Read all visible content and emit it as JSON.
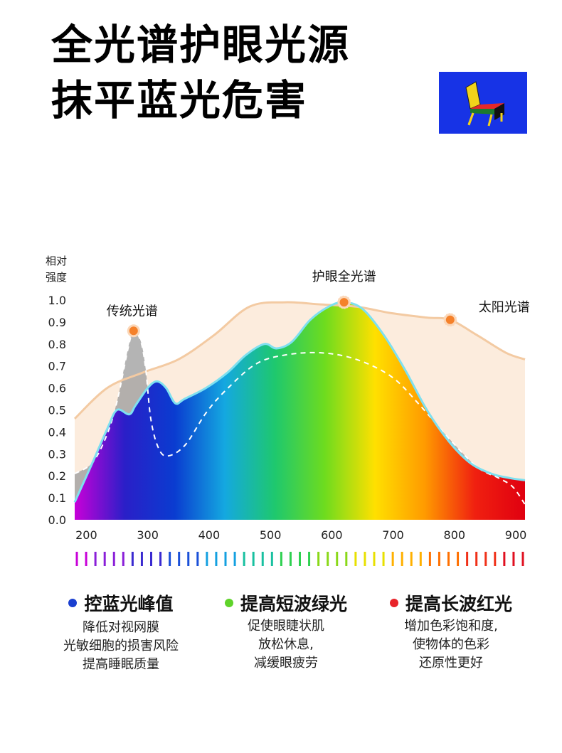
{
  "header": {
    "title": [
      "全光谱护眼光源",
      "抹平蓝光危害"
    ]
  },
  "chart_data": {
    "type": "area",
    "ylabel": "相对强度",
    "xlim": [
      181,
      915
    ],
    "ylim": [
      0,
      1
    ],
    "xticks": [
      200,
      300,
      400,
      500,
      600,
      700,
      800,
      900
    ],
    "yticks": [
      {
        "value": 0,
        "label": "0.0"
      },
      0.1,
      0.2,
      0.3,
      0.4,
      0.5,
      0.6,
      0.7,
      0.8,
      0.9,
      {
        "value": 1,
        "label": "1.0"
      }
    ],
    "series": [
      {
        "name": "太阳光谱",
        "color": "#fbe6d2",
        "line_color": "#f3caa2",
        "x": [
          181,
          234,
          292,
          350,
          408,
          466,
          524,
          582,
          640,
          698,
          756,
          793,
          837,
          884,
          915
        ],
        "values": [
          0.46,
          0.6,
          0.67,
          0.73,
          0.84,
          0.97,
          0.99,
          0.98,
          0.97,
          0.94,
          0.92,
          0.91,
          0.84,
          0.76,
          0.73
        ],
        "marker": {
          "x": 793,
          "y": 0.91
        }
      },
      {
        "name": "传统光谱",
        "color": "#9b9b9b",
        "line_color": "#ffffff",
        "dashed": true,
        "x": [
          181,
          210,
          234,
          251,
          268,
          277,
          289,
          297,
          305,
          317,
          332,
          361,
          396,
          431,
          477,
          524,
          582,
          640,
          698,
          744,
          791,
          837,
          872,
          895,
          915
        ],
        "values": [
          0.21,
          0.26,
          0.39,
          0.55,
          0.78,
          0.86,
          0.81,
          0.68,
          0.46,
          0.33,
          0.29,
          0.34,
          0.49,
          0.6,
          0.71,
          0.75,
          0.76,
          0.73,
          0.65,
          0.52,
          0.37,
          0.24,
          0.19,
          0.15,
          0.07
        ],
        "marker": {
          "x": 277,
          "y": 0.86
        }
      },
      {
        "name": "护眼全光谱",
        "gradient": [
          "#c800d8",
          "#2a1fc8",
          "#0a3cd0",
          "#14a8e0",
          "#1ec86e",
          "#6edc1e",
          "#ffe000",
          "#ff9a00",
          "#f02010",
          "#e00010"
        ],
        "line_color": "#7ee0f0",
        "x": [
          181,
          210,
          235,
          250,
          270,
          280,
          300,
          315,
          330,
          345,
          360,
          395,
          430,
          460,
          490,
          510,
          535,
          565,
          595,
          620,
          650,
          685,
          720,
          755,
          790,
          825,
          860,
          890,
          915
        ],
        "values": [
          0.08,
          0.26,
          0.42,
          0.5,
          0.48,
          0.52,
          0.6,
          0.63,
          0.6,
          0.53,
          0.55,
          0.6,
          0.67,
          0.75,
          0.8,
          0.78,
          0.81,
          0.91,
          0.97,
          0.99,
          0.96,
          0.84,
          0.68,
          0.5,
          0.36,
          0.26,
          0.21,
          0.19,
          0.18
        ],
        "marker": {
          "x": 620,
          "y": 0.99
        }
      }
    ]
  },
  "features": [
    {
      "title": "控蓝光峰值",
      "color": "#1a3fd0",
      "lines": [
        "降低对视网膜",
        "光敏细胞的损害风险",
        "提高睡眠质量"
      ]
    },
    {
      "title": "提高短波绿光",
      "color": "#5fd32a",
      "lines": [
        "促使眼睫状肌",
        "放松休息,",
        "减缓眼疲劳"
      ]
    },
    {
      "title": "提高长波红光",
      "color": "#e8242a",
      "lines": [
        "增加色彩饱和度,",
        "使物体的色彩",
        "还原性更好"
      ]
    }
  ]
}
